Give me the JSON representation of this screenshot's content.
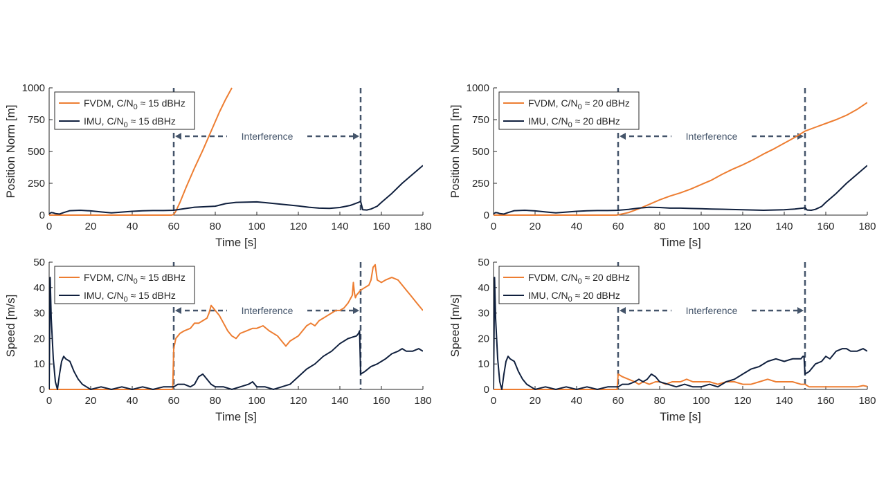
{
  "figure": {
    "background": "#ffffff"
  },
  "colors": {
    "fvdm": "#ed7d31",
    "imu": "#0f1f3d",
    "interference": "#44546a",
    "axis": "#262626"
  },
  "chart_data": [
    {
      "type": "line",
      "xlabel": "Time [s]",
      "ylabel": "Position Norm [m]",
      "xlim": [
        0,
        180
      ],
      "ylim": [
        0,
        1000
      ],
      "xticks": [
        0,
        20,
        40,
        60,
        80,
        100,
        120,
        140,
        160,
        180
      ],
      "yticks": [
        0,
        250,
        500,
        750,
        1000
      ],
      "legend": {
        "placement": "top-left"
      },
      "interference": {
        "label": "Interference",
        "start": 60,
        "end": 150
      },
      "series": [
        {
          "name": "FVDM, C/N0 ≈ 15 dBHz",
          "name_parts": {
            "pre": "FVDM, C/N",
            "sub": "0",
            "post": " ≈ 15 dBHz"
          },
          "color": "#ed7d31",
          "x": [
            0,
            59,
            60,
            61,
            63,
            66,
            70,
            74,
            78,
            82,
            85,
            88
          ],
          "y": [
            0,
            0,
            5,
            30,
            100,
            220,
            370,
            510,
            660,
            810,
            910,
            1000
          ]
        },
        {
          "name": "IMU, C/N0 ≈ 15 dBHz",
          "name_parts": {
            "pre": "IMU, C/N",
            "sub": "0",
            "post": " ≈ 15 dBHz"
          },
          "color": "#0f1f3d",
          "x": [
            0,
            1,
            2,
            3,
            5,
            7,
            10,
            15,
            20,
            25,
            30,
            35,
            40,
            45,
            50,
            55,
            60,
            65,
            70,
            75,
            80,
            85,
            90,
            95,
            100,
            105,
            110,
            115,
            120,
            125,
            130,
            135,
            140,
            145,
            149,
            150,
            151,
            153,
            155,
            158,
            160,
            165,
            170,
            175,
            180
          ],
          "y": [
            10,
            20,
            18,
            12,
            8,
            20,
            35,
            38,
            33,
            25,
            18,
            24,
            30,
            34,
            36,
            36,
            38,
            50,
            62,
            66,
            70,
            90,
            100,
            102,
            104,
            97,
            88,
            80,
            72,
            62,
            55,
            53,
            60,
            76,
            100,
            108,
            42,
            40,
            48,
            70,
            100,
            170,
            250,
            320,
            390
          ]
        }
      ]
    },
    {
      "type": "line",
      "xlabel": "Time [s]",
      "ylabel": "Position Norm [m]",
      "xlim": [
        0,
        180
      ],
      "ylim": [
        0,
        1000
      ],
      "xticks": [
        0,
        20,
        40,
        60,
        80,
        100,
        120,
        140,
        160,
        180
      ],
      "yticks": [
        0,
        250,
        500,
        750,
        1000
      ],
      "legend": {
        "placement": "top-left"
      },
      "interference": {
        "label": "Interference",
        "start": 60,
        "end": 150
      },
      "series": [
        {
          "name": "FVDM, C/N0 ≈ 20 dBHz",
          "name_parts": {
            "pre": "FVDM, C/N",
            "sub": "0",
            "post": " ≈ 20 dBHz"
          },
          "color": "#ed7d31",
          "x": [
            0,
            59,
            60,
            65,
            70,
            75,
            80,
            85,
            90,
            95,
            100,
            105,
            110,
            115,
            120,
            125,
            130,
            135,
            140,
            145,
            150,
            155,
            160,
            165,
            170,
            175,
            180
          ],
          "y": [
            0,
            0,
            2,
            20,
            50,
            85,
            120,
            150,
            175,
            205,
            240,
            275,
            320,
            360,
            395,
            435,
            480,
            520,
            565,
            610,
            660,
            690,
            720,
            750,
            785,
            830,
            885
          ]
        },
        {
          "name": "IMU, C/N0 ≈ 20 dBHz",
          "name_parts": {
            "pre": "IMU, C/N",
            "sub": "0",
            "post": " ≈ 20 dBHz"
          },
          "color": "#0f1f3d",
          "x": [
            0,
            1,
            2,
            3,
            5,
            7,
            10,
            15,
            20,
            25,
            30,
            35,
            40,
            45,
            50,
            55,
            60,
            65,
            70,
            75,
            80,
            85,
            90,
            95,
            100,
            105,
            110,
            115,
            120,
            125,
            130,
            135,
            140,
            145,
            149,
            150,
            151,
            153,
            155,
            158,
            160,
            165,
            170,
            175,
            180
          ],
          "y": [
            10,
            20,
            18,
            12,
            8,
            20,
            35,
            38,
            33,
            25,
            18,
            24,
            30,
            34,
            36,
            36,
            38,
            45,
            55,
            62,
            60,
            55,
            55,
            52,
            50,
            48,
            46,
            44,
            42,
            40,
            38,
            40,
            42,
            48,
            55,
            58,
            40,
            38,
            45,
            68,
            100,
            170,
            250,
            320,
            390
          ]
        }
      ]
    },
    {
      "type": "line",
      "xlabel": "Time [s]",
      "ylabel": "Speed [m/s]",
      "xlim": [
        0,
        180
      ],
      "ylim": [
        0,
        50
      ],
      "xticks": [
        0,
        20,
        40,
        60,
        80,
        100,
        120,
        140,
        160,
        180
      ],
      "yticks": [
        0,
        10,
        20,
        30,
        40,
        50
      ],
      "legend": {
        "placement": "top-left"
      },
      "interference": {
        "label": "Interference",
        "start": 60,
        "end": 150
      },
      "series": [
        {
          "name": "FVDM, C/N0 ≈ 15 dBHz",
          "name_parts": {
            "pre": "FVDM, C/N",
            "sub": "0",
            "post": " ≈ 15 dBHz"
          },
          "color": "#ed7d31",
          "x": [
            0,
            59.5,
            60,
            61,
            63,
            65,
            68,
            70,
            72,
            74,
            76,
            77,
            78,
            79,
            80,
            82,
            84,
            86,
            88,
            90,
            92,
            95,
            98,
            100,
            103,
            106,
            110,
            112,
            114,
            116,
            118,
            120,
            122,
            124,
            126,
            128,
            130,
            132,
            134,
            136,
            138,
            140,
            142,
            144,
            146,
            146.5,
            147,
            147.5,
            148,
            149,
            150,
            152,
            154,
            155,
            156,
            157,
            158,
            160,
            162,
            165,
            168,
            170,
            172,
            174,
            176,
            178,
            180
          ],
          "y": [
            0,
            0,
            16,
            20,
            22,
            23,
            24,
            26,
            26,
            27,
            28,
            30,
            33,
            32,
            31,
            29,
            26,
            23,
            21,
            20,
            22,
            23,
            24,
            24,
            25,
            23,
            21,
            19,
            17,
            19,
            20,
            21,
            23,
            25,
            26,
            25,
            27,
            28,
            29,
            30,
            31,
            31,
            32,
            34,
            37,
            42,
            38,
            36,
            37,
            38,
            39,
            40,
            41,
            43,
            48,
            49,
            43,
            42,
            43,
            44,
            43,
            41,
            39,
            37,
            35,
            33,
            31
          ]
        },
        {
          "name": "IMU, C/N0 ≈ 15 dBHz",
          "name_parts": {
            "pre": "IMU, C/N",
            "sub": "0",
            "post": " ≈ 15 dBHz"
          },
          "color": "#0f1f3d",
          "x": [
            0,
            0.5,
            1,
            2,
            3,
            4,
            5,
            6,
            7,
            8,
            10,
            12,
            14,
            16,
            18,
            20,
            25,
            30,
            35,
            40,
            45,
            50,
            55,
            60,
            62,
            65,
            68,
            70,
            72,
            74,
            76,
            78,
            80,
            84,
            88,
            92,
            96,
            98,
            100,
            104,
            108,
            112,
            116,
            120,
            124,
            128,
            132,
            136,
            140,
            144,
            148,
            149,
            149.5,
            150,
            152,
            155,
            158,
            160,
            162,
            165,
            168,
            170,
            172,
            175,
            178,
            180
          ],
          "y": [
            0,
            44,
            28,
            12,
            3,
            0,
            6,
            11,
            13,
            12,
            11,
            7,
            4,
            2,
            1,
            0,
            1,
            0,
            1,
            0,
            1,
            0,
            1,
            1,
            2,
            2,
            1,
            2,
            5,
            6,
            4,
            2,
            1,
            1,
            0,
            1,
            2,
            3,
            1,
            1,
            0,
            1,
            2,
            5,
            8,
            10,
            13,
            15,
            18,
            20,
            21,
            22,
            23,
            6,
            7,
            9,
            10,
            11,
            12,
            14,
            15,
            16,
            15,
            15,
            16,
            15
          ]
        }
      ]
    },
    {
      "type": "line",
      "xlabel": "Time [s]",
      "ylabel": "Speed [m/s]",
      "xlim": [
        0,
        180
      ],
      "ylim": [
        0,
        50
      ],
      "xticks": [
        0,
        20,
        40,
        60,
        80,
        100,
        120,
        140,
        160,
        180
      ],
      "yticks": [
        0,
        10,
        20,
        30,
        40,
        50
      ],
      "legend": {
        "placement": "top-left"
      },
      "interference": {
        "label": "Interference",
        "start": 60,
        "end": 150
      },
      "series": [
        {
          "name": "FVDM, C/N0 ≈ 20 dBHz",
          "name_parts": {
            "pre": "FVDM, C/N",
            "sub": "0",
            "post": " ≈ 20 dBHz"
          },
          "color": "#ed7d31",
          "x": [
            0,
            59.5,
            60,
            62,
            65,
            68,
            70,
            72,
            75,
            78,
            80,
            83,
            86,
            90,
            93,
            96,
            100,
            104,
            108,
            112,
            116,
            120,
            124,
            128,
            132,
            136,
            140,
            144,
            148,
            150,
            152,
            155,
            160,
            165,
            170,
            175,
            178,
            180
          ],
          "y": [
            0,
            0,
            6,
            5,
            4,
            3,
            2,
            3,
            2,
            3,
            3,
            2,
            3,
            3,
            4,
            3,
            3,
            3,
            2,
            3,
            3,
            2,
            2,
            3,
            4,
            3,
            3,
            3,
            2,
            2,
            1,
            1,
            1,
            1,
            1,
            1,
            1.5,
            1.2
          ]
        },
        {
          "name": "IMU, C/N0 ≈ 20 dBHz",
          "name_parts": {
            "pre": "IMU, C/N",
            "sub": "0",
            "post": " ≈ 20 dBHz"
          },
          "color": "#0f1f3d",
          "x": [
            0,
            0.5,
            1,
            2,
            3,
            4,
            5,
            6,
            7,
            8,
            10,
            12,
            14,
            16,
            18,
            20,
            25,
            30,
            35,
            40,
            45,
            50,
            55,
            60,
            62,
            65,
            68,
            70,
            72,
            74,
            76,
            78,
            80,
            84,
            88,
            92,
            96,
            100,
            104,
            108,
            112,
            116,
            120,
            124,
            128,
            132,
            136,
            140,
            144,
            148,
            149,
            149.5,
            150,
            152,
            155,
            158,
            160,
            162,
            165,
            168,
            170,
            172,
            175,
            178,
            180
          ],
          "y": [
            0,
            44,
            28,
            12,
            3,
            0,
            6,
            11,
            13,
            12,
            11,
            7,
            4,
            2,
            1,
            0,
            1,
            0,
            1,
            0,
            1,
            0,
            1,
            1,
            2,
            2,
            3,
            4,
            3,
            4,
            6,
            5,
            3,
            2,
            1,
            2,
            1,
            1,
            2,
            1,
            3,
            4,
            6,
            8,
            9,
            11,
            12,
            11,
            12,
            12,
            13,
            13,
            6,
            7,
            10,
            11,
            13,
            12,
            15,
            16,
            16,
            15,
            15,
            16,
            15
          ]
        }
      ]
    }
  ]
}
